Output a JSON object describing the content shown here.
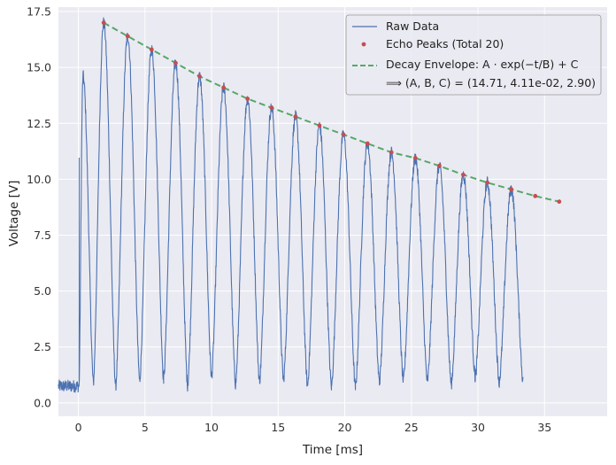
{
  "chart_data": {
    "type": "line",
    "title": "",
    "xlabel": "Time [ms]",
    "ylabel": "Voltage [V]",
    "xlim": [
      -1.5,
      39.7
    ],
    "ylim": [
      -0.6,
      17.7
    ],
    "xticks": [
      0,
      5,
      10,
      15,
      20,
      25,
      30,
      35
    ],
    "yticks": [
      0.0,
      2.5,
      5.0,
      7.5,
      10.0,
      12.5,
      15.0,
      17.5
    ],
    "xtick_labels": [
      "0",
      "5",
      "10",
      "15",
      "20",
      "25",
      "30",
      "35"
    ],
    "ytick_labels": [
      "0.0",
      "2.5",
      "5.0",
      "7.5",
      "10.0",
      "12.5",
      "15.0",
      "17.5"
    ],
    "grid": true,
    "legend_position": "top-right",
    "colors": {
      "background": "#eaeaf2",
      "grid": "#ffffff",
      "raw": "#4c72b0",
      "peaks": "#c44e52",
      "fit": "#55a868"
    },
    "series": [
      {
        "name": "Raw Data",
        "kind": "line",
        "baseline": 0.75,
        "pulse_start": [
          0.05,
          1.9,
          3.7,
          5.5,
          7.3,
          9.1,
          10.9,
          12.7,
          14.5,
          16.3,
          18.1,
          19.9,
          21.7,
          23.5,
          25.3,
          27.1,
          28.9,
          30.7,
          32.5,
          34.3,
          36.1
        ],
        "pulse_peak": [
          0.35,
          1.9,
          3.7,
          5.5,
          7.3,
          9.1,
          10.9,
          12.7,
          14.5,
          16.3,
          18.1,
          19.9,
          21.7,
          23.5,
          25.3,
          27.1,
          28.9,
          30.7,
          32.5,
          34.3,
          36.1
        ],
        "pulse_amplitude": [
          14.6,
          17.0,
          16.4,
          15.8,
          15.2,
          14.6,
          14.1,
          13.6,
          13.2,
          12.8,
          12.4,
          12.0,
          11.6,
          11.2,
          10.95,
          10.6,
          10.2,
          9.85,
          9.55,
          9.25,
          9.0
        ],
        "trough_values": [
          0.9,
          0.75,
          1.0,
          1.1,
          0.8,
          1.2,
          0.85,
          1.0,
          1.05,
          0.8,
          0.75,
          0.7,
          0.95,
          1.0,
          0.95,
          0.85,
          1.15,
          0.95,
          0.9,
          0.8
        ],
        "end_time": 36.9
      },
      {
        "name": "Echo Peaks (Total 20)",
        "kind": "scatter",
        "x": [
          1.9,
          3.7,
          5.5,
          7.3,
          9.1,
          10.9,
          12.7,
          14.5,
          16.3,
          18.1,
          19.9,
          21.7,
          23.5,
          25.3,
          27.1,
          28.9,
          30.7,
          32.5,
          34.3,
          36.1
        ],
        "y": [
          17.0,
          16.4,
          15.8,
          15.2,
          14.6,
          14.1,
          13.6,
          13.2,
          12.8,
          12.4,
          12.0,
          11.6,
          11.2,
          10.95,
          10.6,
          10.2,
          9.85,
          9.55,
          9.25,
          9.0
        ]
      },
      {
        "name": "Decay Envelope: A · exp(−t/B) + C",
        "kind": "dashed-line",
        "fit_params": {
          "A": 14.71,
          "B_per_ms": 0.0411,
          "C": 2.9
        },
        "x_range": [
          1.9,
          36.1
        ]
      }
    ],
    "legend": {
      "raw": "Raw Data",
      "peaks": "Echo Peaks (Total 20)",
      "fit_line1": "Decay Envelope: A · exp(−t/B) + C",
      "fit_line2": "⟹ (A, B, C) = (14.71, 4.11e-02, 2.90)"
    }
  }
}
